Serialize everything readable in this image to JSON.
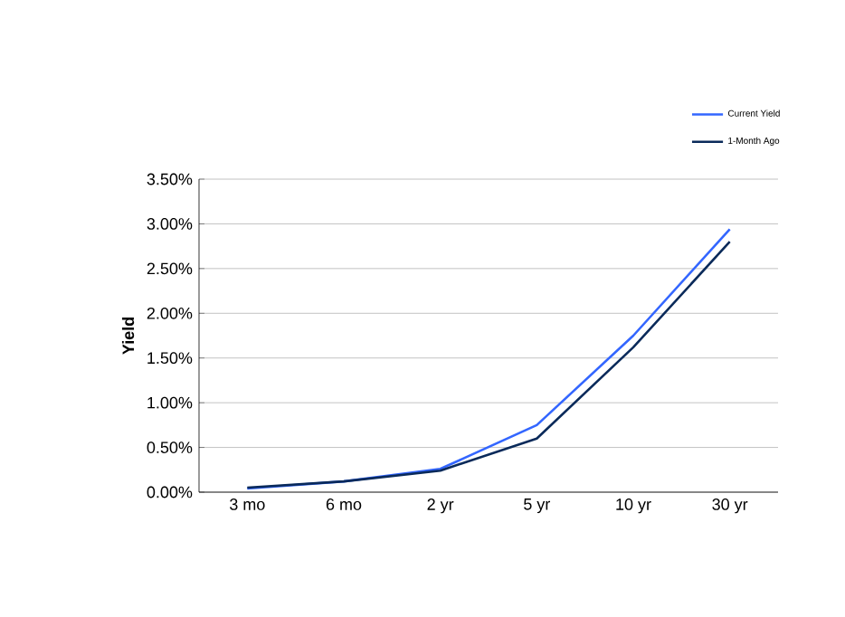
{
  "chart_data": {
    "type": "line",
    "ylabel": "Yield",
    "categories": [
      "3 mo",
      "6 mo",
      "2 yr",
      "5 yr",
      "10 yr",
      "30 yr"
    ],
    "series": [
      {
        "name": "Current Yield",
        "color": "#3366ff",
        "values": [
          0.04,
          0.12,
          0.26,
          0.75,
          1.75,
          2.94
        ]
      },
      {
        "name": "1-Month Ago",
        "color": "#0a2a5a",
        "values": [
          0.05,
          0.12,
          0.24,
          0.6,
          1.62,
          2.8
        ]
      }
    ],
    "ylim": [
      0,
      3.5
    ],
    "yticks": [
      {
        "value": 0,
        "label": "0.00%"
      },
      {
        "value": 0.5,
        "label": "0.50%"
      },
      {
        "value": 1,
        "label": "1.00%"
      },
      {
        "value": 1.5,
        "label": "1.50%"
      },
      {
        "value": 2,
        "label": "2.00%"
      },
      {
        "value": 2.5,
        "label": "2.50%"
      },
      {
        "value": 3,
        "label": "3.00%"
      },
      {
        "value": 3.5,
        "label": "3.50%"
      }
    ],
    "grid": "y",
    "legend": "top right",
    "marker": "none",
    "line_style": "solid"
  }
}
